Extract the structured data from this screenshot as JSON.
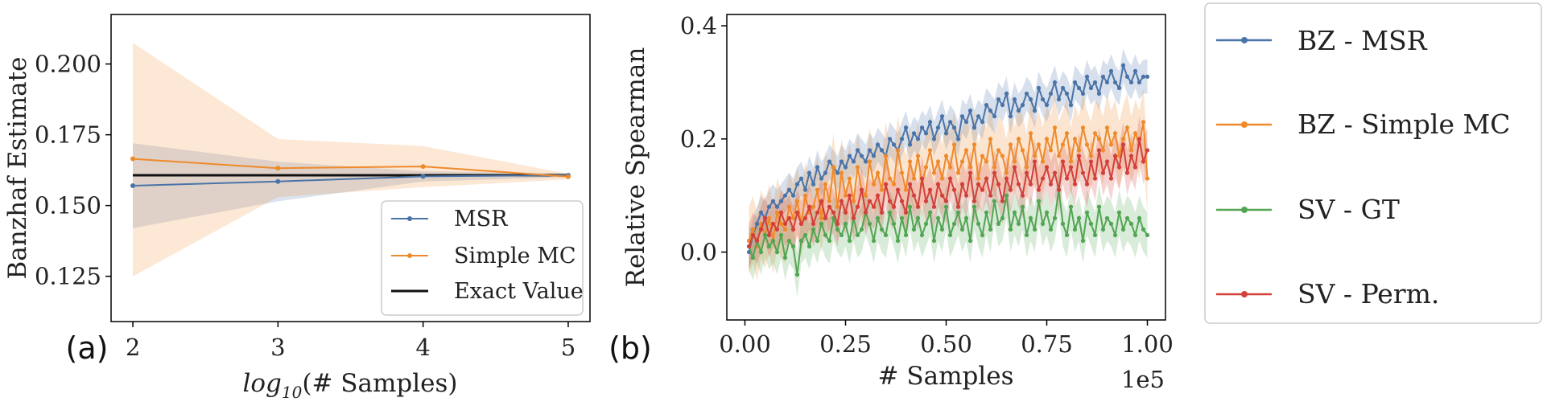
{
  "colors": {
    "blue": "#4a74a8",
    "orange": "#ef8a2b",
    "green": "#52a552",
    "red": "#d2403a",
    "black": "#111111"
  },
  "panels": {
    "a": "(a)",
    "b": "(b)"
  },
  "chart_data": [
    {
      "id": "a",
      "type": "line",
      "title": "",
      "xlabel_prefix": "log",
      "xlabel_sub": "10",
      "xlabel_suffix": "(# Samples)",
      "ylabel": "Banzhaf Estimate",
      "xlim": [
        1.85,
        5.15
      ],
      "ylim": [
        0.109,
        0.2175
      ],
      "xticks": [
        2,
        3,
        4,
        5
      ],
      "xtick_labels": [
        "2",
        "3",
        "4",
        "5"
      ],
      "yticks": [
        0.125,
        0.15,
        0.175,
        0.2
      ],
      "ytick_labels": [
        "0.125",
        "0.150",
        "0.175",
        "0.200"
      ],
      "x": [
        2,
        3,
        4,
        5
      ],
      "series": [
        {
          "name": "MSR",
          "color_key": "blue",
          "values": [
            0.157,
            0.1585,
            0.1603,
            0.1607
          ],
          "lower": [
            0.142,
            0.1515,
            0.1585,
            0.16
          ],
          "upper": [
            0.172,
            0.1655,
            0.1621,
            0.1614
          ]
        },
        {
          "name": "Simple MC",
          "color_key": "orange",
          "values": [
            0.1665,
            0.1632,
            0.1638,
            0.1602
          ],
          "lower": [
            0.125,
            0.153,
            0.1565,
            0.1592
          ],
          "upper": [
            0.2075,
            0.1735,
            0.171,
            0.1612
          ]
        }
      ],
      "reference": {
        "name": "Exact Value",
        "value": 0.1607
      },
      "legend_position": "lower-right"
    },
    {
      "id": "b",
      "type": "line",
      "title": "",
      "xlabel": "# Samples",
      "ylabel": "Relative Spearman",
      "offset_text": "1e5",
      "xlim": [
        -0.045,
        1.045
      ],
      "ylim": [
        -0.12,
        0.42
      ],
      "xticks": [
        0.0,
        0.25,
        0.5,
        0.75,
        1.0
      ],
      "xtick_labels": [
        "0.00",
        "0.25",
        "0.50",
        "0.75",
        "1.00"
      ],
      "yticks": [
        0.0,
        0.2,
        0.4
      ],
      "ytick_labels": [
        "0.0",
        "0.2",
        "0.4"
      ],
      "x": [
        0.01,
        0.02,
        0.03,
        0.04,
        0.05,
        0.06,
        0.07,
        0.08,
        0.09,
        0.1,
        0.11,
        0.12,
        0.13,
        0.14,
        0.15,
        0.16,
        0.17,
        0.18,
        0.19,
        0.2,
        0.21,
        0.22,
        0.23,
        0.24,
        0.25,
        0.26,
        0.27,
        0.28,
        0.29,
        0.3,
        0.31,
        0.32,
        0.33,
        0.34,
        0.35,
        0.36,
        0.37,
        0.38,
        0.39,
        0.4,
        0.41,
        0.42,
        0.43,
        0.44,
        0.45,
        0.46,
        0.47,
        0.48,
        0.49,
        0.5,
        0.51,
        0.52,
        0.53,
        0.54,
        0.55,
        0.56,
        0.57,
        0.58,
        0.59,
        0.6,
        0.61,
        0.62,
        0.63,
        0.64,
        0.65,
        0.66,
        0.67,
        0.68,
        0.69,
        0.7,
        0.71,
        0.72,
        0.73,
        0.74,
        0.75,
        0.76,
        0.77,
        0.78,
        0.79,
        0.8,
        0.81,
        0.82,
        0.83,
        0.84,
        0.85,
        0.86,
        0.87,
        0.88,
        0.89,
        0.9,
        0.91,
        0.92,
        0.93,
        0.94,
        0.95,
        0.96,
        0.97,
        0.98,
        0.99,
        1.0
      ],
      "series": [
        {
          "name": "BZ - MSR",
          "color_key": "blue",
          "band": 0.03,
          "values": [
            0.0,
            0.03,
            0.05,
            0.07,
            0.06,
            0.08,
            0.09,
            0.08,
            0.09,
            0.1,
            0.11,
            0.1,
            0.12,
            0.13,
            0.11,
            0.14,
            0.12,
            0.15,
            0.13,
            0.14,
            0.16,
            0.15,
            0.14,
            0.16,
            0.15,
            0.17,
            0.16,
            0.18,
            0.17,
            0.16,
            0.18,
            0.17,
            0.19,
            0.18,
            0.17,
            0.2,
            0.19,
            0.18,
            0.2,
            0.22,
            0.19,
            0.21,
            0.2,
            0.22,
            0.21,
            0.23,
            0.2,
            0.22,
            0.24,
            0.21,
            0.23,
            0.22,
            0.2,
            0.24,
            0.23,
            0.25,
            0.22,
            0.24,
            0.23,
            0.26,
            0.25,
            0.24,
            0.27,
            0.26,
            0.28,
            0.24,
            0.27,
            0.25,
            0.26,
            0.28,
            0.27,
            0.25,
            0.29,
            0.27,
            0.26,
            0.28,
            0.3,
            0.27,
            0.29,
            0.28,
            0.26,
            0.3,
            0.29,
            0.28,
            0.31,
            0.29,
            0.3,
            0.28,
            0.31,
            0.3,
            0.32,
            0.3,
            0.29,
            0.33,
            0.31,
            0.3,
            0.32,
            0.3,
            0.31,
            0.31
          ]
        },
        {
          "name": "BZ - Simple MC",
          "color_key": "orange",
          "band": 0.06,
          "values": [
            0.02,
            0.04,
            0.01,
            0.05,
            0.03,
            0.06,
            0.02,
            0.07,
            0.05,
            0.04,
            0.08,
            0.06,
            0.09,
            0.05,
            0.1,
            0.07,
            0.08,
            0.11,
            0.06,
            0.12,
            0.09,
            0.15,
            0.08,
            0.14,
            0.1,
            0.13,
            0.09,
            0.15,
            0.11,
            0.1,
            0.16,
            0.12,
            0.14,
            0.11,
            0.17,
            0.13,
            0.12,
            0.18,
            0.14,
            0.11,
            0.16,
            0.13,
            0.17,
            0.12,
            0.15,
            0.18,
            0.14,
            0.16,
            0.13,
            0.17,
            0.15,
            0.19,
            0.14,
            0.16,
            0.18,
            0.15,
            0.19,
            0.13,
            0.17,
            0.16,
            0.2,
            0.15,
            0.18,
            0.17,
            0.14,
            0.19,
            0.16,
            0.2,
            0.18,
            0.15,
            0.21,
            0.17,
            0.19,
            0.16,
            0.2,
            0.18,
            0.22,
            0.17,
            0.19,
            0.21,
            0.16,
            0.2,
            0.18,
            0.22,
            0.19,
            0.17,
            0.21,
            0.2,
            0.18,
            0.22,
            0.19,
            0.21,
            0.17,
            0.2,
            0.22,
            0.18,
            0.21,
            0.19,
            0.23,
            0.13
          ]
        },
        {
          "name": "SV - GT",
          "color_key": "green",
          "band": 0.04,
          "values": [
            0.01,
            -0.01,
            0.02,
            0.0,
            0.03,
            0.01,
            0.02,
            0.0,
            0.03,
            -0.01,
            0.02,
            0.01,
            -0.04,
            0.02,
            0.03,
            0.01,
            0.04,
            0.02,
            0.05,
            0.03,
            0.02,
            0.06,
            0.04,
            0.03,
            0.05,
            0.02,
            0.06,
            0.03,
            0.04,
            0.07,
            0.05,
            0.02,
            0.06,
            0.04,
            0.03,
            0.07,
            0.05,
            0.02,
            0.06,
            0.03,
            0.08,
            0.04,
            0.06,
            0.03,
            0.05,
            0.07,
            0.02,
            0.06,
            0.04,
            0.08,
            0.03,
            0.05,
            0.07,
            0.04,
            0.06,
            0.02,
            0.08,
            0.05,
            0.03,
            0.07,
            0.04,
            0.09,
            0.05,
            0.06,
            0.1,
            0.04,
            0.07,
            0.05,
            0.08,
            0.03,
            0.06,
            0.04,
            0.09,
            0.05,
            0.07,
            0.04,
            0.06,
            0.11,
            0.05,
            0.03,
            0.08,
            0.04,
            0.06,
            0.02,
            0.07,
            0.05,
            0.03,
            0.08,
            0.04,
            0.06,
            0.05,
            0.03,
            0.07,
            0.04,
            0.06,
            0.05,
            0.03,
            0.06,
            0.04,
            0.03
          ]
        },
        {
          "name": "SV - Perm.",
          "color_key": "red",
          "band": 0.04,
          "values": [
            0.01,
            0.03,
            0.02,
            0.04,
            0.06,
            0.03,
            0.05,
            0.04,
            0.07,
            0.05,
            0.06,
            0.04,
            0.07,
            0.05,
            0.06,
            0.08,
            0.05,
            0.07,
            0.09,
            0.06,
            0.08,
            0.07,
            0.05,
            0.09,
            0.07,
            0.1,
            0.06,
            0.08,
            0.11,
            0.07,
            0.09,
            0.08,
            0.1,
            0.07,
            0.12,
            0.09,
            0.08,
            0.11,
            0.09,
            0.07,
            0.12,
            0.1,
            0.08,
            0.13,
            0.09,
            0.11,
            0.08,
            0.12,
            0.1,
            0.09,
            0.13,
            0.11,
            0.08,
            0.12,
            0.1,
            0.14,
            0.09,
            0.12,
            0.11,
            0.13,
            0.1,
            0.14,
            0.12,
            0.09,
            0.13,
            0.11,
            0.15,
            0.12,
            0.1,
            0.14,
            0.12,
            0.16,
            0.11,
            0.13,
            0.15,
            0.12,
            0.14,
            0.11,
            0.16,
            0.13,
            0.15,
            0.12,
            0.17,
            0.14,
            0.12,
            0.16,
            0.13,
            0.18,
            0.14,
            0.16,
            0.13,
            0.17,
            0.15,
            0.19,
            0.14,
            0.17,
            0.15,
            0.2,
            0.16,
            0.18
          ]
        }
      ],
      "legend_position": "outside-right"
    }
  ]
}
